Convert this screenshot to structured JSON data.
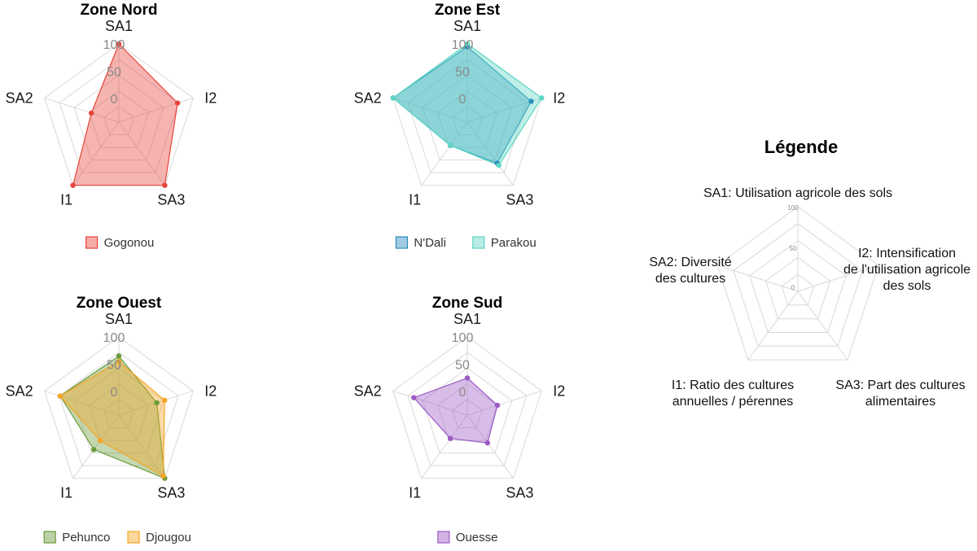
{
  "chart_data": [
    {
      "type": "radar",
      "title": "Zone Nord",
      "axes": [
        "SA1",
        "I2",
        "SA3",
        "I1",
        "SA2"
      ],
      "ticks": [
        "100",
        "50",
        "0"
      ],
      "range": [
        0,
        100
      ],
      "series": [
        {
          "name": "Gogonou",
          "values": [
            100,
            70,
            100,
            100,
            10
          ],
          "color": "#e8443a"
        }
      ]
    },
    {
      "type": "radar",
      "title": "Zone Est",
      "axes": [
        "SA1",
        "I2",
        "SA3",
        "I1",
        "SA2"
      ],
      "ticks": [
        "100",
        "50",
        "0"
      ],
      "range": [
        0,
        100
      ],
      "series": [
        {
          "name": "N'Dali",
          "values": [
            95,
            80,
            50,
            10,
            100
          ],
          "color": "#2b8fbf"
        },
        {
          "name": "Parakou",
          "values": [
            100,
            100,
            55,
            10,
            100
          ],
          "color": "#5fd6c4"
        }
      ]
    },
    {
      "type": "radar",
      "title": "Zone Ouest",
      "axes": [
        "SA1",
        "I2",
        "SA3",
        "I1",
        "SA2"
      ],
      "ticks": [
        "100",
        "50",
        "0"
      ],
      "range": [
        0,
        100
      ],
      "series": [
        {
          "name": "Pehunco",
          "values": [
            65,
            30,
            100,
            35,
            70
          ],
          "color": "#6a9c3a"
        },
        {
          "name": "Djougou",
          "values": [
            55,
            45,
            95,
            15,
            70
          ],
          "color": "#f5a623"
        }
      ]
    },
    {
      "type": "radar",
      "title": "Zone Sud",
      "axes": [
        "SA1",
        "I2",
        "SA3",
        "I1",
        "SA2"
      ],
      "ticks": [
        "100",
        "50",
        "0"
      ],
      "range": [
        0,
        100
      ],
      "series": [
        {
          "name": "Ouesse",
          "values": [
            25,
            15,
            20,
            10,
            60
          ],
          "color": "#9b59c4"
        }
      ]
    }
  ],
  "key": {
    "title": "Légende",
    "ticks": [
      "100",
      "50",
      "0"
    ],
    "labels": {
      "sa1": [
        "SA1: Utilisation agricole des sols"
      ],
      "i2": [
        "I2: Intensification",
        "de l'utilisation agricole",
        "des sols"
      ],
      "sa3": [
        "SA3: Part des cultures",
        "alimentaires"
      ],
      "i1": [
        "I1: Ratio des cultures",
        "annuelles / pérennes"
      ],
      "sa2": [
        "SA2: Diversité",
        "des cultures"
      ]
    }
  }
}
